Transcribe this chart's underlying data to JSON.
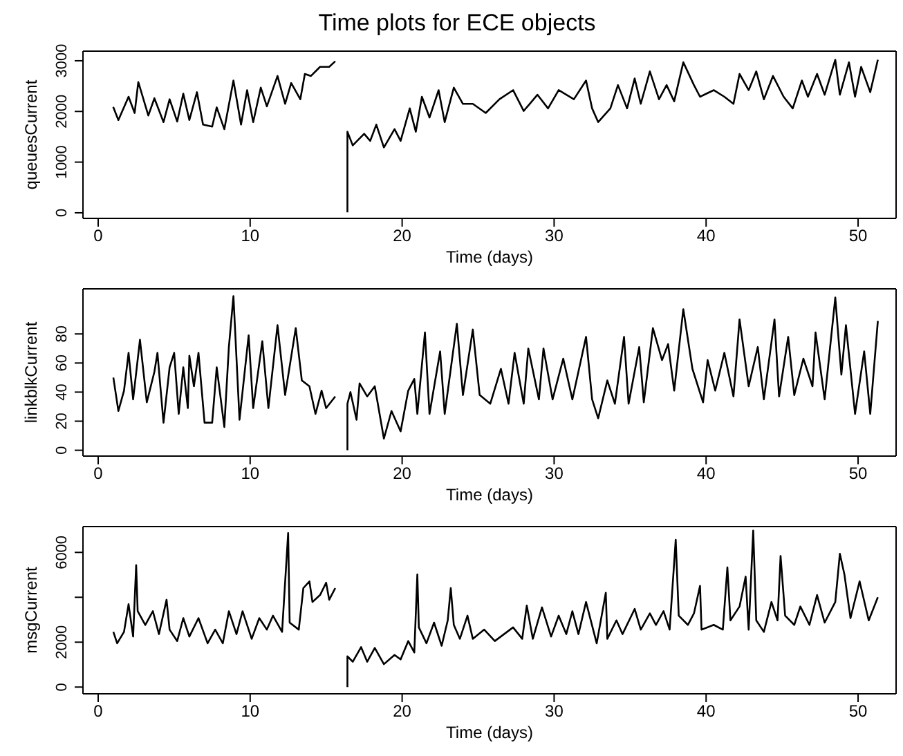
{
  "chart_data": [
    {
      "type": "line",
      "title": "Time plots for ECE objects",
      "xlabel": "Time (days)",
      "ylabel": "queuesCurrent",
      "marker": "none",
      "xlim": [
        -1,
        52.5
      ],
      "xticks": [
        0,
        10,
        20,
        30,
        40,
        50
      ],
      "ylim": [
        -110,
        3190
      ],
      "yticks": [
        0,
        1000,
        2000,
        3000
      ],
      "x": [
        0.99,
        1.33,
        2.0,
        2.4,
        2.64,
        3.3,
        3.7,
        4.3,
        4.7,
        5.2,
        5.6,
        6.0,
        6.5,
        6.9,
        7.5,
        7.8,
        8.3,
        8.9,
        9.4,
        9.8,
        10.2,
        10.7,
        11.1,
        11.8,
        12.3,
        12.7,
        13.3,
        13.6,
        14.0,
        14.6,
        15.2,
        15.6,
        16.0,
        16.4,
        16.4,
        16.75,
        17.5,
        17.9,
        18.3,
        18.8,
        19.5,
        19.9,
        20.5,
        20.9,
        21.3,
        21.8,
        22.4,
        22.8,
        23.4,
        24.0,
        24.65,
        25.5,
        26.4,
        27.3,
        28.0,
        28.9,
        29.6,
        30.3,
        31.3,
        32.1,
        32.5,
        32.9,
        33.7,
        34.2,
        34.8,
        35.3,
        35.7,
        36.3,
        36.9,
        37.4,
        37.9,
        38.5,
        39.2,
        39.6,
        40.5,
        41.2,
        41.8,
        42.2,
        42.8,
        43.3,
        43.8,
        44.4,
        45.1,
        45.7,
        46.3,
        46.7,
        47.3,
        47.8,
        48.5,
        48.8,
        49.4,
        49.8,
        50.2,
        50.8,
        51.3
      ],
      "series": [
        {
          "color": "#000000",
          "values": [
            2090,
            1830,
            2290,
            1970,
            2580,
            1920,
            2260,
            1790,
            2240,
            1800,
            2350,
            1830,
            2380,
            1740,
            1700,
            2080,
            1650,
            2610,
            1740,
            2420,
            1790,
            2470,
            2100,
            2700,
            2150,
            2560,
            2240,
            2740,
            2700,
            2880,
            2880,
            2990,
            null,
            10,
            1600,
            1330,
            1560,
            1420,
            1740,
            1290,
            1650,
            1420,
            2060,
            1600,
            2290,
            1880,
            2420,
            1790,
            2470,
            2150,
            2150,
            1970,
            2240,
            2420,
            2010,
            2330,
            2060,
            2420,
            2240,
            2610,
            2060,
            1790,
            2060,
            2520,
            2060,
            2650,
            2150,
            2790,
            2240,
            2520,
            2200,
            2970,
            2520,
            2290,
            2420,
            2290,
            2150,
            2740,
            2420,
            2790,
            2240,
            2700,
            2290,
            2060,
            2610,
            2290,
            2740,
            2330,
            3020,
            2330,
            2970,
            2290,
            2880,
            2380,
            3020
          ]
        }
      ]
    },
    {
      "type": "line",
      "xlabel": "Time (days)",
      "ylabel": "linkblkCurrent",
      "marker": "none",
      "xlim": [
        -1,
        52.5
      ],
      "xticks": [
        0,
        10,
        20,
        30,
        40,
        50
      ],
      "ylim": [
        -4,
        111
      ],
      "yticks": [
        0,
        20,
        40,
        60,
        80
      ],
      "x": [
        1.0,
        1.33,
        1.7,
        2.0,
        2.3,
        2.75,
        3.2,
        3.7,
        3.9,
        4.3,
        4.7,
        5.0,
        5.3,
        5.6,
        5.9,
        6.0,
        6.3,
        6.6,
        7.0,
        7.5,
        7.8,
        8.3,
        8.6,
        8.9,
        9.3,
        9.9,
        10.2,
        10.8,
        11.2,
        11.8,
        12.3,
        13.0,
        13.4,
        13.9,
        14.3,
        14.7,
        15.0,
        15.6,
        16.0,
        16.4,
        16.4,
        16.6,
        17.0,
        17.2,
        17.7,
        18.2,
        18.8,
        19.3,
        19.9,
        20.4,
        20.8,
        21.0,
        21.5,
        21.8,
        22.5,
        22.8,
        23.6,
        24.0,
        24.65,
        25.1,
        25.8,
        26.5,
        27.0,
        27.4,
        28.0,
        28.3,
        29.0,
        29.3,
        29.9,
        30.6,
        31.2,
        32.1,
        32.5,
        32.9,
        33.5,
        34.0,
        34.6,
        34.9,
        35.6,
        35.9,
        36.5,
        37.1,
        37.5,
        37.9,
        38.5,
        39.1,
        39.8,
        40.1,
        40.6,
        41.2,
        41.8,
        42.2,
        42.8,
        43.4,
        43.8,
        44.5,
        44.8,
        45.4,
        45.8,
        46.4,
        47.0,
        47.2,
        47.8,
        48.5,
        48.9,
        49.2,
        49.8,
        50.4,
        50.8,
        51.3
      ],
      "series": [
        {
          "color": "#000000",
          "values": [
            50,
            27,
            41,
            67,
            35,
            76,
            33,
            54,
            67,
            19,
            57,
            67,
            25,
            57,
            29,
            65,
            44,
            67,
            19,
            19,
            57,
            16,
            71,
            106,
            21,
            79,
            29,
            75,
            29,
            86,
            38,
            84,
            48,
            44,
            25,
            41,
            29,
            37,
            null,
            0,
            32,
            40,
            21,
            46,
            37,
            44,
            8,
            27,
            13,
            41,
            49,
            25,
            81,
            25,
            68,
            25,
            87,
            38,
            83,
            38,
            32,
            56,
            32,
            67,
            32,
            70,
            35,
            70,
            35,
            63,
            35,
            78,
            35,
            22,
            48,
            32,
            78,
            32,
            71,
            33,
            84,
            62,
            73,
            41,
            97,
            56,
            33,
            62,
            41,
            67,
            37,
            90,
            44,
            71,
            35,
            90,
            37,
            78,
            38,
            63,
            44,
            81,
            35,
            105,
            52,
            86,
            25,
            68,
            25,
            89
          ]
        }
      ]
    },
    {
      "type": "line",
      "xlabel": "Time (days)",
      "ylabel": "msgCurrent",
      "marker": "none",
      "xlim": [
        -1,
        52.5
      ],
      "xticks": [
        0,
        10,
        20,
        30,
        40,
        50
      ],
      "ylim": [
        -300,
        7150
      ],
      "yticks": [
        0,
        2000,
        {
          "value": 4000,
          "label": null
        },
        6000
      ],
      "x": [
        1.0,
        1.25,
        1.7,
        2.0,
        2.3,
        2.5,
        2.6,
        3.1,
        3.6,
        4.0,
        4.5,
        4.7,
        5.2,
        5.6,
        6.0,
        6.6,
        7.2,
        7.7,
        8.2,
        8.6,
        9.1,
        9.5,
        10.1,
        10.6,
        11.1,
        11.5,
        12.1,
        12.5,
        12.6,
        13.2,
        13.5,
        13.9,
        14.1,
        14.6,
        15.0,
        15.2,
        15.6,
        16.0,
        16.4,
        16.4,
        16.75,
        17.3,
        17.7,
        18.2,
        18.8,
        19.5,
        19.9,
        20.4,
        20.8,
        21.0,
        21.1,
        21.6,
        22.1,
        22.6,
        23.0,
        23.2,
        23.4,
        23.8,
        24.3,
        24.65,
        25.4,
        26.1,
        27.3,
        27.9,
        28.2,
        28.6,
        29.2,
        29.8,
        30.3,
        30.8,
        31.2,
        31.6,
        32.1,
        32.8,
        33.4,
        33.5,
        34.1,
        34.5,
        35.3,
        35.7,
        36.3,
        36.7,
        37.2,
        37.6,
        38.0,
        38.2,
        38.8,
        39.2,
        39.6,
        39.7,
        40.5,
        41.1,
        41.4,
        41.6,
        42.2,
        42.6,
        42.8,
        43.1,
        43.3,
        43.8,
        44.3,
        44.7,
        44.9,
        45.2,
        45.8,
        46.2,
        46.8,
        47.3,
        47.8,
        48.5,
        48.8,
        49.1,
        49.5,
        50.1,
        50.7,
        51.3
      ],
      "series": [
        {
          "color": "#000000",
          "values": [
            2460,
            1950,
            2460,
            3690,
            2250,
            5430,
            3380,
            2770,
            3380,
            2360,
            3890,
            2560,
            2050,
            3070,
            2250,
            3070,
            1950,
            2560,
            1950,
            3380,
            2360,
            3380,
            2150,
            3070,
            2560,
            3180,
            2460,
            6860,
            2870,
            2560,
            4410,
            4710,
            3790,
            4100,
            4650,
            3890,
            4410,
            null,
            0,
            1370,
            1130,
            1780,
            1130,
            1740,
            1020,
            1430,
            1230,
            2050,
            1540,
            5020,
            2660,
            1950,
            2870,
            1840,
            2970,
            4410,
            2770,
            2150,
            3180,
            2150,
            2560,
            2050,
            2660,
            2150,
            3630,
            2150,
            3550,
            2250,
            3180,
            2360,
            3380,
            2360,
            3790,
            1950,
            4200,
            2150,
            2970,
            2360,
            3480,
            2560,
            3280,
            2770,
            3380,
            2560,
            6560,
            3180,
            2770,
            3280,
            4510,
            2560,
            2770,
            2560,
            5330,
            2970,
            3590,
            4920,
            2560,
            6970,
            2970,
            2460,
            3790,
            2970,
            5840,
            3180,
            2770,
            3590,
            2770,
            4100,
            2870,
            3790,
            5940,
            5020,
            3070,
            4710,
            2970,
            4000
          ]
        }
      ]
    }
  ]
}
